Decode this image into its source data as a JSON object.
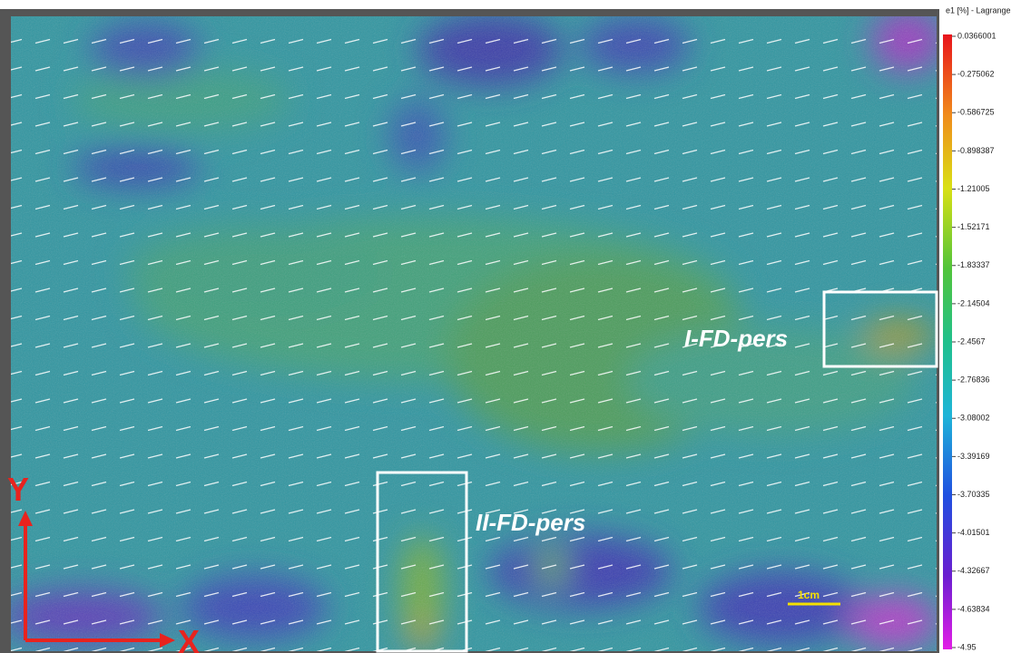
{
  "colorbar": {
    "title": "e1 [%] - Lagrange",
    "labels": [
      "0.0366001",
      "-0.275062",
      "-0.586725",
      "-0.898387",
      "-1.21005",
      "-1.52171",
      "-1.83337",
      "-2.14504",
      "-2.4567",
      "-2.76836",
      "-3.08002",
      "-3.39169",
      "-3.70335",
      "-4.01501",
      "-4.32667",
      "-4.63834",
      "-4.95"
    ]
  },
  "annotations": {
    "region_1": "I-FD-pers",
    "region_2": "II-FD-pers",
    "scale_bar": "1cm",
    "axis_y": "Y",
    "axis_x": "X"
  }
}
